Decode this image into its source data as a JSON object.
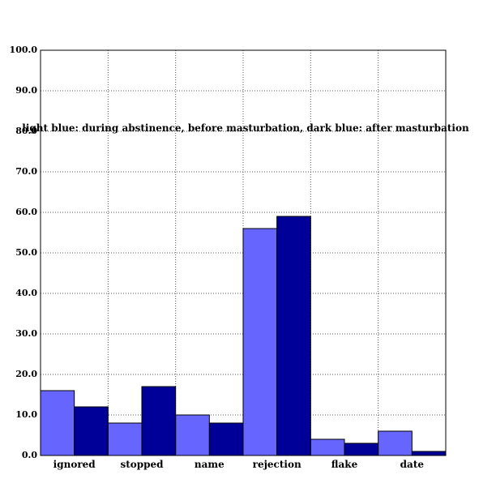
{
  "chart_data": {
    "type": "bar",
    "title": "",
    "xlabel": "",
    "ylabel": "",
    "annotation": "light blue: during abstinence, before masturbation, dark blue: after masturbation",
    "categories": [
      "ignored",
      "stopped",
      "name",
      "rejection",
      "flake",
      "date"
    ],
    "series": [
      {
        "color": "#6666ff",
        "values": [
          16,
          8,
          10,
          56,
          4,
          6
        ]
      },
      {
        "color": "#000099",
        "values": [
          12,
          17,
          8,
          59,
          3,
          1
        ]
      }
    ],
    "ylim": [
      0,
      100
    ],
    "yticks": [
      "0.0",
      "10.0",
      "20.0",
      "30.0",
      "40.0",
      "50.0",
      "60.0",
      "70.0",
      "80.0",
      "90.0",
      "100.0"
    ],
    "grid": true
  }
}
